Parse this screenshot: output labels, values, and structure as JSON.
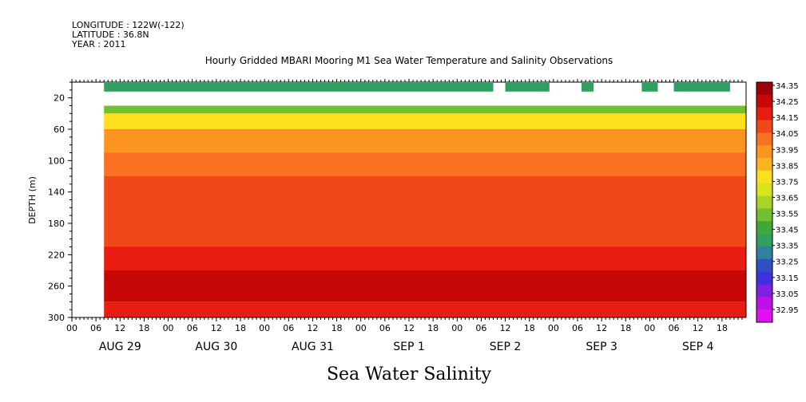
{
  "header": {
    "longitude": "LONGITUDE : 122W(-122)",
    "latitude": "LATITUDE : 36.8N",
    "year": "YEAR : 2011"
  },
  "chart_data": {
    "type": "heatmap",
    "title": "Hourly Gridded MBARI Mooring M1 Sea Water Temperature and Salinity Observations",
    "variable_label": "Sea Water Salinity",
    "ylabel": "DEPTH (m)",
    "xlim_hours": [
      0,
      168
    ],
    "ylim": [
      300,
      0
    ],
    "y_ticks": [
      20,
      60,
      100,
      140,
      180,
      220,
      260,
      300
    ],
    "x_hour_ticks": [
      "00",
      "06",
      "12",
      "18",
      "00",
      "06",
      "12",
      "18",
      "00",
      "06",
      "12",
      "18",
      "00",
      "06",
      "12",
      "18",
      "00",
      "06",
      "12",
      "18",
      "00",
      "06",
      "12",
      "18",
      "00",
      "06",
      "12",
      "18"
    ],
    "day_labels": [
      "AUG 29",
      "AUG 30",
      "AUG 31",
      "SEP  1",
      "SEP  2",
      "SEP  3",
      "SEP  4"
    ],
    "colorbar": {
      "labels": [
        "34.35",
        "34.25",
        "34.15",
        "34.05",
        "33.95",
        "33.85",
        "33.75",
        "33.65",
        "33.55",
        "33.45",
        "33.35",
        "33.25",
        "33.15",
        "33.05",
        "32.95"
      ],
      "colors": [
        "#a0000a",
        "#c80808",
        "#e81c10",
        "#f04818",
        "#f87020",
        "#fc9420",
        "#fcb41c",
        "#fce01c",
        "#d8e41c",
        "#a8d428",
        "#70c030",
        "#40a838",
        "#30a060",
        "#3080a0",
        "#3050c8",
        "#4030e0",
        "#8020e0",
        "#c010e8",
        "#e010f0"
      ]
    },
    "data_start_hour": 8,
    "surface_segments_hours": [
      [
        8,
        105
      ],
      [
        108,
        119
      ],
      [
        127,
        130
      ],
      [
        142,
        146
      ],
      [
        150,
        164
      ]
    ],
    "depth_layers": [
      {
        "depth": [
          30,
          40
        ],
        "salinity": 33.6
      },
      {
        "depth": [
          40,
          60
        ],
        "salinity": 33.8
      },
      {
        "depth": [
          60,
          90
        ],
        "salinity": 33.95
      },
      {
        "depth": [
          90,
          120
        ],
        "salinity": 34.05
      },
      {
        "depth": [
          120,
          210
        ],
        "salinity": 34.12
      },
      {
        "depth": [
          210,
          240
        ],
        "salinity": 34.2
      },
      {
        "depth": [
          240,
          280
        ],
        "salinity": 34.3
      },
      {
        "depth": [
          280,
          300
        ],
        "salinity": 34.22
      }
    ],
    "surface_salinity_near_20m": 33.4
  }
}
